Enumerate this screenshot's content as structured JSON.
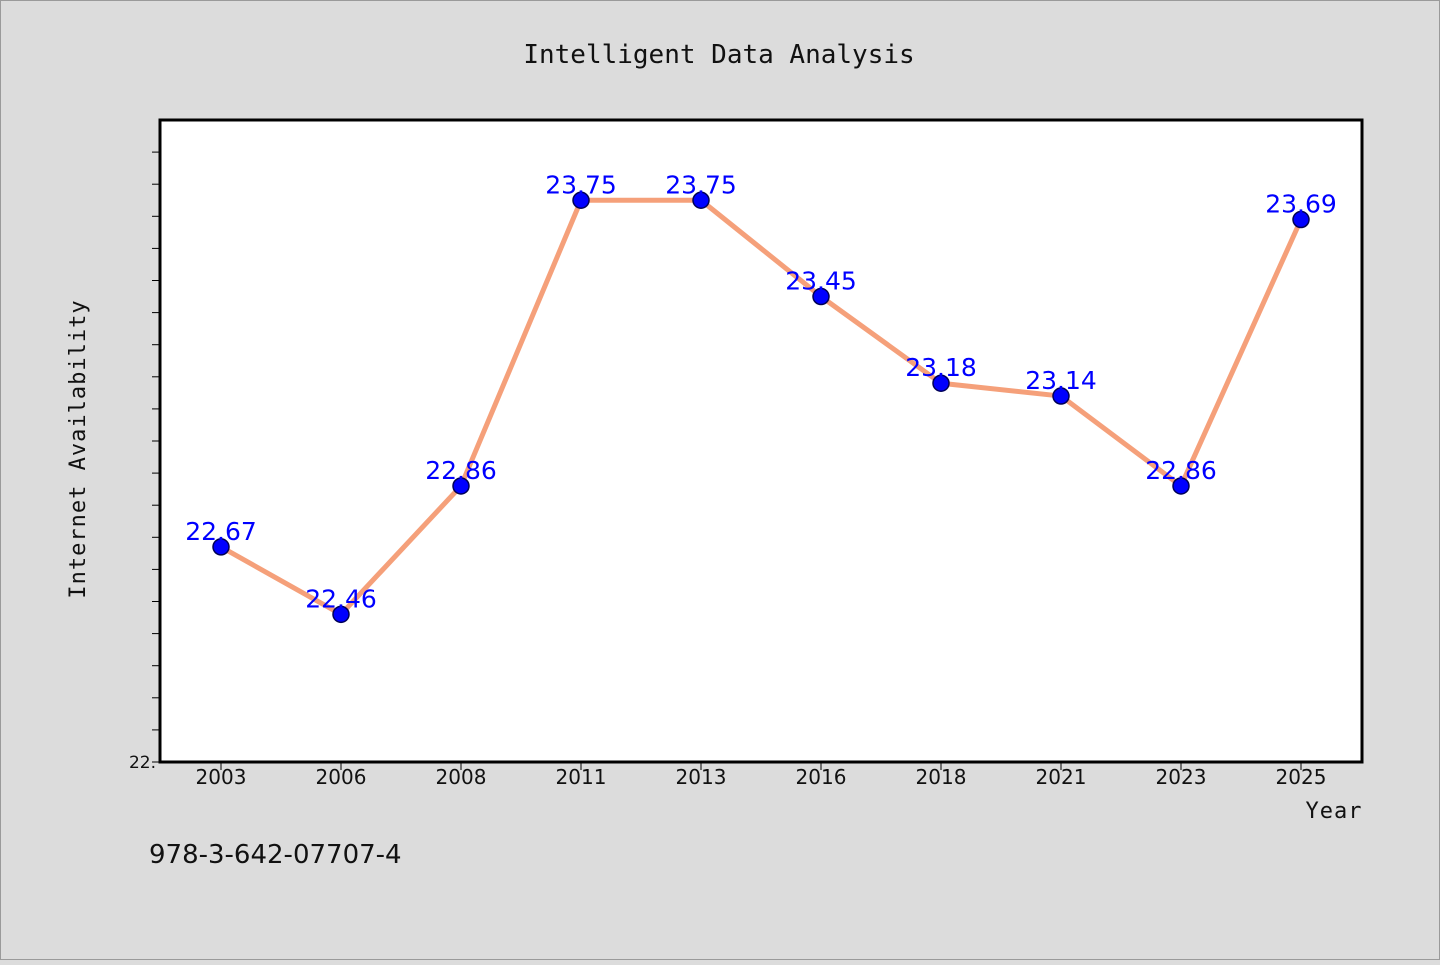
{
  "isbn": "978-3-642-07707-4",
  "chart_data": {
    "type": "line",
    "title": "Intelligent Data Analysis",
    "xlabel": "Year",
    "ylabel": "Internet Availability",
    "categories": [
      "2003",
      "2006",
      "2008",
      "2011",
      "2013",
      "2016",
      "2018",
      "2021",
      "2023",
      "2025"
    ],
    "values": [
      22.67,
      22.46,
      22.86,
      23.75,
      23.75,
      23.45,
      23.18,
      23.14,
      22.86,
      23.69
    ],
    "data_labels": [
      "22.67",
      "22.46",
      "22.86",
      "23.75",
      "23.75",
      "23.45",
      "23.18",
      "23.14",
      "22.86",
      "23.69"
    ],
    "ylim": [
      22.0,
      24.0
    ],
    "y_tick_labels": [
      "22."
    ],
    "grid": false,
    "legend": "none",
    "colors": {
      "line": "#f5a07a",
      "marker": "#0000ff",
      "marker_stroke": "#000055",
      "data_label": "#0000ff",
      "plot_background": "#ffffff",
      "page_background": "#dcdcdc"
    }
  }
}
